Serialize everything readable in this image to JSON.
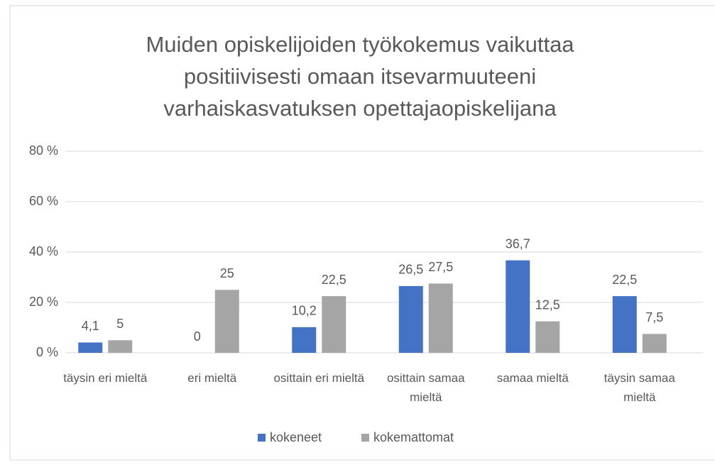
{
  "chart_data": {
    "type": "bar",
    "title": "Muiden opiskelijoiden työkokemus vaikuttaa positiivisesti omaan itsevarmuuteeni varhaiskasvatuksen opettajaopiskelijana",
    "categories": [
      "täysin eri mieltä",
      "eri mieltä",
      "osittain eri mieltä",
      "osittain samaa mieltä",
      "samaa mieltä",
      "täysin samaa mieltä"
    ],
    "series": [
      {
        "name": "kokeneet",
        "color": "#4472c4",
        "values": [
          4.1,
          0,
          10.2,
          26.5,
          36.7,
          22.5
        ],
        "value_labels": [
          "4,1",
          "0",
          "10,2",
          "26,5",
          "36,7",
          "22,5"
        ]
      },
      {
        "name": "kokemattomat",
        "color": "#a5a5a5",
        "values": [
          5,
          25,
          22.5,
          27.5,
          12.5,
          7.5
        ],
        "value_labels": [
          "5",
          "25",
          "22,5",
          "27,5",
          "12,5",
          "7,5"
        ]
      }
    ],
    "ylim": [
      0,
      80
    ],
    "yticks": [
      {
        "value": 0,
        "label": "0 %"
      },
      {
        "value": 20,
        "label": "20 %"
      },
      {
        "value": 40,
        "label": "40 %"
      },
      {
        "value": 60,
        "label": "60 %"
      },
      {
        "value": 80,
        "label": "80 %"
      }
    ],
    "grid": true,
    "legend": "bottom"
  }
}
